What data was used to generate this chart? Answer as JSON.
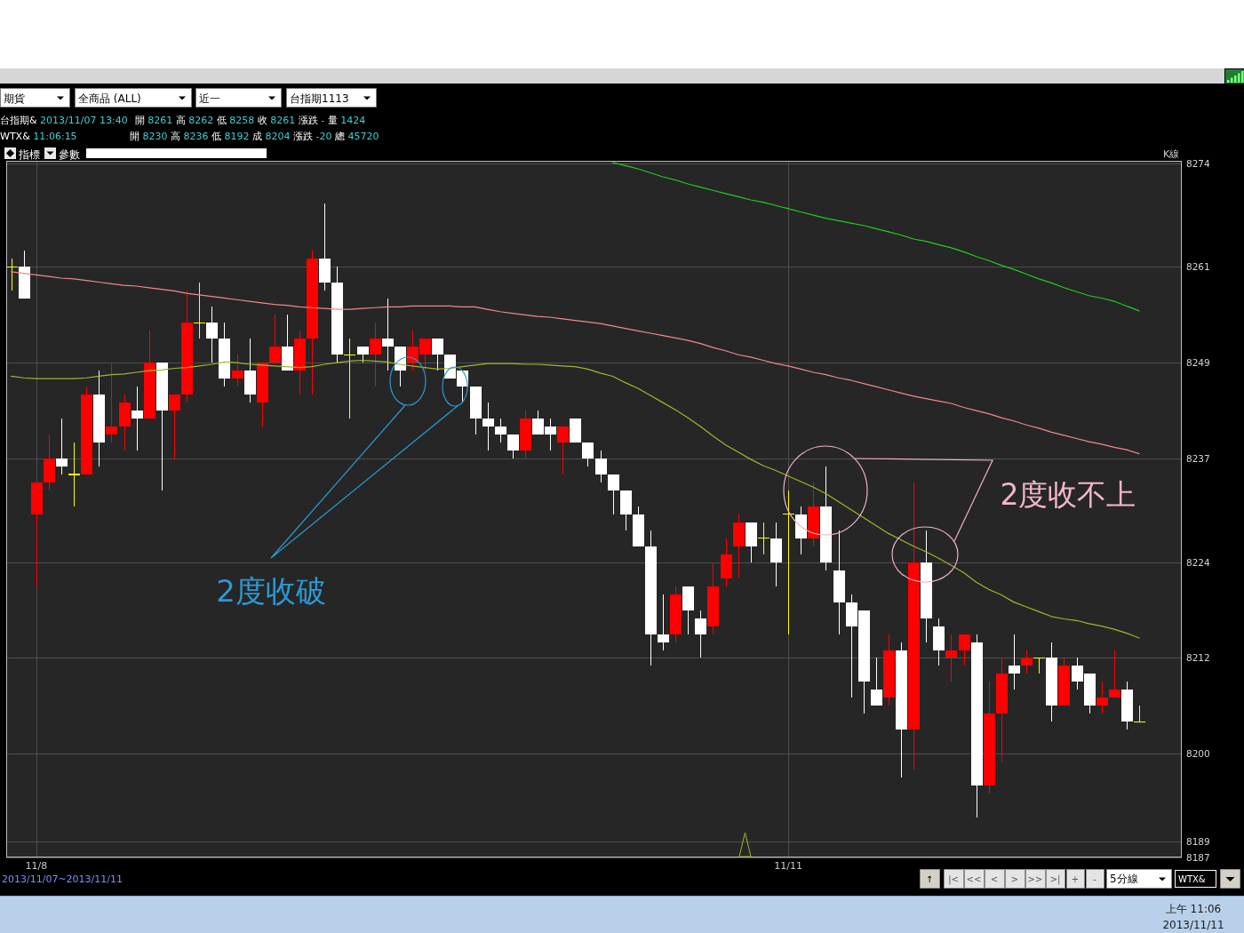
{
  "chart_data": {
    "type": "candlestick",
    "categories": [
      null,
      null,
      "11/8",
      null,
      null,
      null,
      null,
      null,
      null,
      null,
      null,
      null,
      null,
      null,
      null,
      null,
      null,
      null,
      null,
      null,
      null,
      null,
      null,
      null,
      null,
      null,
      null,
      null,
      null,
      null,
      null,
      null,
      null,
      null,
      null,
      null,
      null,
      null,
      null,
      null,
      null,
      null,
      null,
      null,
      null,
      null,
      null,
      null,
      null,
      null,
      null,
      null,
      null,
      null,
      null,
      null,
      null,
      null,
      null,
      null,
      null,
      null,
      "11/11",
      null,
      null,
      null,
      null,
      null,
      null,
      null,
      null,
      null,
      null,
      null,
      null,
      null,
      null,
      null,
      null,
      null,
      null,
      null,
      null,
      null,
      null,
      null,
      null,
      null,
      null,
      null,
      null
    ],
    "ohlc": [
      [
        8261,
        8262,
        8258,
        8261
      ],
      [
        8261,
        8263,
        8257,
        8257
      ],
      [
        8230,
        8234,
        8221,
        8234
      ],
      [
        8234,
        8240,
        8233,
        8237
      ],
      [
        8237,
        8242,
        8235,
        8236
      ],
      [
        8235,
        8239,
        8231,
        8235
      ],
      [
        8235,
        8246,
        8235,
        8245
      ],
      [
        8245,
        8248,
        8236,
        8239
      ],
      [
        8240,
        8249,
        8239,
        8241
      ],
      [
        8241,
        8245,
        8238,
        8244
      ],
      [
        8243,
        8246,
        8238,
        8242
      ],
      [
        8242,
        8253,
        8242,
        8249
      ],
      [
        8249,
        8249,
        8233,
        8243
      ],
      [
        8243,
        8245,
        8237,
        8245
      ],
      [
        8245,
        8258,
        8244,
        8254
      ],
      [
        8254,
        8259,
        8252,
        8254
      ],
      [
        8254,
        8256,
        8249,
        8252
      ],
      [
        8252,
        8254,
        8246,
        8247
      ],
      [
        8247,
        8250,
        8246,
        8248
      ],
      [
        8248,
        8252,
        8244,
        8245
      ],
      [
        8244,
        8249,
        8241,
        8249
      ],
      [
        8249,
        8255,
        8249,
        8251
      ],
      [
        8251,
        8255,
        8248,
        8248
      ],
      [
        8248,
        8253,
        8245,
        8252
      ],
      [
        8252,
        8263,
        8245,
        8262
      ],
      [
        8262,
        8269,
        8258,
        8259
      ],
      [
        8259,
        8261,
        8249,
        8250
      ],
      [
        8250,
        8252,
        8242,
        8250
      ],
      [
        8251,
        8251,
        8249,
        8250
      ],
      [
        8250,
        8254,
        8246,
        8252
      ],
      [
        8252,
        8257,
        8248,
        8251
      ],
      [
        8251,
        8251,
        8246,
        8248
      ],
      [
        8249,
        8253,
        8248,
        8251
      ],
      [
        8250,
        8252,
        8248,
        8252
      ],
      [
        8252,
        8252,
        8248,
        8250
      ],
      [
        8250,
        8250,
        8247,
        8247
      ],
      [
        8248,
        8248,
        8244,
        8246
      ],
      [
        8246,
        8246,
        8240,
        8242
      ],
      [
        8242,
        8244,
        8238,
        8241
      ],
      [
        8241,
        8242,
        8239,
        8240
      ],
      [
        8240,
        8240,
        8237,
        8238
      ],
      [
        8238,
        8243,
        8237,
        8242
      ],
      [
        8242,
        8243,
        8240,
        8240
      ],
      [
        8241,
        8242,
        8238,
        8240
      ],
      [
        8239,
        8241,
        8235,
        8241
      ],
      [
        8242,
        8242,
        8239,
        8239
      ],
      [
        8239,
        8239,
        8236,
        8237
      ],
      [
        8237,
        8238,
        8234,
        8235
      ],
      [
        8235,
        8235,
        8230,
        8233
      ],
      [
        8233,
        8233,
        8228,
        8230
      ],
      [
        8230,
        8231,
        8226,
        8226
      ],
      [
        8226,
        8228,
        8211,
        8215
      ],
      [
        8215,
        8220,
        8213,
        8214
      ],
      [
        8215,
        8221,
        8214,
        8220
      ],
      [
        8221,
        8221,
        8215,
        8218
      ],
      [
        8217,
        8218,
        8212,
        8215
      ],
      [
        8216,
        8224,
        8215,
        8221
      ],
      [
        8222,
        8227,
        8221,
        8225
      ],
      [
        8226,
        8230,
        8222,
        8229
      ],
      [
        8229,
        8229,
        8224,
        8226
      ],
      [
        8227,
        8229,
        8225,
        8227
      ],
      [
        8227,
        8229,
        8221,
        8224
      ],
      [
        8230,
        8233,
        8215,
        8230
      ],
      [
        8230,
        8231,
        8225,
        8227
      ],
      [
        8227,
        8234,
        8226,
        8231
      ],
      [
        8231,
        8236,
        8223,
        8224
      ],
      [
        8223,
        8228,
        8215,
        8219
      ],
      [
        8219,
        8220,
        8207,
        8216
      ],
      [
        8218,
        8218,
        8205,
        8209
      ],
      [
        8208,
        8212,
        8206,
        8206
      ],
      [
        8207,
        8215,
        8206,
        8213
      ],
      [
        8213,
        8214,
        8197,
        8203
      ],
      [
        8203,
        8234,
        8198,
        8224
      ],
      [
        8224,
        8228,
        8214,
        8217
      ],
      [
        8216,
        8217,
        8211,
        8213
      ],
      [
        8212,
        8215,
        8209,
        8213
      ],
      [
        8213,
        8215,
        8211,
        8215
      ],
      [
        8214,
        8215,
        8192,
        8196
      ],
      [
        8196,
        8209,
        8195,
        8205
      ],
      [
        8205,
        8212,
        8199,
        8210
      ],
      [
        8211,
        8215,
        8208,
        8210
      ],
      [
        8211,
        8213,
        8210,
        8212
      ],
      [
        8212,
        8212,
        8210,
        8212
      ],
      [
        8212,
        8214,
        8204,
        8206
      ],
      [
        8206,
        8212,
        8206,
        8211
      ],
      [
        8211,
        8212,
        8208,
        8209
      ],
      [
        8210,
        8210,
        8205,
        8206
      ],
      [
        8206,
        8209,
        8205,
        8207
      ],
      [
        8207,
        8213,
        8207,
        8208
      ],
      [
        8208,
        8209,
        8203,
        8204
      ],
      [
        8204,
        8206,
        8204,
        8204
      ]
    ],
    "colors": [
      "#ffff00",
      "#ffffff",
      "#ff0000",
      "#ff0000",
      "#ffffff",
      "#ffff00",
      "#ff0000",
      "#ffffff",
      "#ff0000",
      "#ff0000",
      "#ffffff",
      "#ff0000",
      "#ffffff",
      "#ff0000",
      "#ff0000",
      "#ffff00",
      "#ffffff",
      "#ffffff",
      "#ff0000",
      "#ffffff",
      "#ff0000",
      "#ff0000",
      "#ffffff",
      "#ff0000",
      "#ff0000",
      "#ffffff",
      "#ffffff",
      "#ffff00",
      "#ffffff",
      "#ff0000",
      "#ffffff",
      "#ffffff",
      "#ff0000",
      "#ff0000",
      "#ffffff",
      "#ffffff",
      "#ffffff",
      "#ffffff",
      "#ffffff",
      "#ffffff",
      "#ffffff",
      "#ff0000",
      "#ffffff",
      "#ffffff",
      "#ff0000",
      "#ffffff",
      "#ffffff",
      "#ffffff",
      "#ffffff",
      "#ffffff",
      "#ffffff",
      "#ffffff",
      "#ffffff",
      "#ff0000",
      "#ffffff",
      "#ffffff",
      "#ff0000",
      "#ff0000",
      "#ff0000",
      "#ffffff",
      "#ffff00",
      "#ffffff",
      "#ffff00",
      "#ffffff",
      "#ff0000",
      "#ffffff",
      "#ffffff",
      "#ffffff",
      "#ffffff",
      "#ffffff",
      "#ff0000",
      "#ffffff",
      "#ff0000",
      "#ffffff",
      "#ffffff",
      "#ff0000",
      "#ff0000",
      "#ffffff",
      "#ff0000",
      "#ff0000",
      "#ffffff",
      "#ff0000",
      "#ffff00",
      "#ffffff",
      "#ff0000",
      "#ffffff",
      "#ffffff",
      "#ff0000",
      "#ff0000",
      "#ffffff",
      "#ffff00"
    ],
    "series": [
      {
        "type": "line",
        "color": "#a3b62a",
        "values": [
          8247.3,
          8247.1,
          8247.0,
          8247.0,
          8247.0,
          8247.0,
          8247.1,
          8247.3,
          8247.5,
          8247.6,
          8247.8,
          8248.0,
          8248.1,
          8248.3,
          8248.4,
          8248.6,
          8248.8,
          8249.1,
          8249.0,
          8248.8,
          8248.7,
          8248.6,
          8248.5,
          8248.4,
          8248.5,
          8248.8,
          8249.0,
          8249.2,
          8249.3,
          8249.2,
          8249.1,
          8248.8,
          8248.6,
          8248.4,
          8248.2,
          8248.3,
          8248.5,
          8248.7,
          8248.9,
          8248.9,
          8248.9,
          8248.8,
          8248.8,
          8248.7,
          8248.6,
          8248.5,
          8248.2,
          8247.7,
          8247.3,
          8246.5,
          8245.8,
          8244.9,
          8244.0,
          8243.1,
          8242.1,
          8241.0,
          8239.8,
          8238.7,
          8237.8,
          8236.9,
          8236.1,
          8235.5,
          8234.8,
          8234.1,
          8233.4,
          8232.6,
          8231.6,
          8230.6,
          8229.6,
          8228.6,
          8227.6,
          8226.8,
          8226.0,
          8225.3,
          8224.5,
          8223.6,
          8222.7,
          8221.5,
          8220.6,
          8219.9,
          8219.0,
          8218.4,
          8217.8,
          8217.2,
          8216.9,
          8216.7,
          8216.3,
          8216.0,
          8215.6,
          8215.1,
          8214.5
        ]
      },
      {
        "type": "line",
        "color": "#ee8a8a",
        "values": [
          8260.4,
          8260.2,
          8260.0,
          8259.8,
          8259.6,
          8259.5,
          8259.3,
          8259.1,
          8258.9,
          8258.7,
          8258.6,
          8258.4,
          8258.2,
          8258.0,
          8257.7,
          8257.5,
          8257.3,
          8257.1,
          8256.9,
          8256.7,
          8256.5,
          8256.3,
          8256.2,
          8256.0,
          8255.9,
          8255.8,
          8255.7,
          8255.7,
          8255.8,
          8255.9,
          8256.0,
          8256.0,
          8256.1,
          8256.1,
          8256.1,
          8256.1,
          8256.0,
          8256.0,
          8255.7,
          8255.4,
          8255.2,
          8255.0,
          8254.8,
          8254.7,
          8254.5,
          8254.3,
          8254.1,
          8253.9,
          8253.6,
          8253.3,
          8253.0,
          8252.7,
          8252.4,
          8252.1,
          8251.8,
          8251.4,
          8250.9,
          8250.5,
          8250.0,
          8249.7,
          8249.3,
          8248.9,
          8248.6,
          8248.2,
          8247.8,
          8247.5,
          8247.1,
          8246.8,
          8246.4,
          8246.0,
          8245.6,
          8245.2,
          8244.8,
          8244.5,
          8244.2,
          8243.9,
          8243.4,
          8243.0,
          8242.6,
          8242.1,
          8241.7,
          8241.2,
          8240.8,
          8240.3,
          8239.9,
          8239.5,
          8239.1,
          8238.8,
          8238.4,
          8238.1,
          8237.6
        ]
      },
      {
        "type": "line",
        "color": "#22cc22",
        "values": [
          null,
          null,
          null,
          null,
          null,
          null,
          null,
          null,
          null,
          null,
          null,
          null,
          null,
          null,
          null,
          null,
          null,
          null,
          null,
          null,
          null,
          null,
          null,
          null,
          null,
          null,
          null,
          null,
          null,
          null,
          null,
          null,
          null,
          null,
          null,
          null,
          null,
          null,
          null,
          null,
          null,
          null,
          null,
          null,
          null,
          null,
          null,
          null,
          8274.1,
          8273.7,
          8273.3,
          8272.8,
          8272.3,
          8271.9,
          8271.4,
          8271.0,
          8270.6,
          8270.2,
          8269.8,
          8269.4,
          8269.1,
          8268.7,
          8268.3,
          8267.9,
          8267.5,
          8267.1,
          8266.8,
          8266.5,
          8266.2,
          8265.8,
          8265.4,
          8265.0,
          8264.5,
          8264.2,
          8263.8,
          8263.4,
          8262.9,
          8262.3,
          8261.8,
          8261.2,
          8260.7,
          8260.1,
          8259.5,
          8259.0,
          8258.4,
          8257.9,
          8257.4,
          8257.1,
          8256.7,
          8256.1,
          8255.5
        ]
      }
    ],
    "ylim": [
      8187,
      8274.3
    ],
    "yticks": [
      8274,
      8261,
      8249,
      8237,
      8224,
      8212,
      8200,
      8189,
      8187
    ],
    "grid": true,
    "annotations": [
      "期貨",
      "全商品 (ALL)",
      "近一",
      "台指期1113",
      "台指期& 2013/11/07 13:40",
      "開 8261 高 8262 低 8258 收 8261 漲跌 - 量 1424",
      "WTX& 11:06:15",
      "開 8230 高 8236 低 8192 成 8204 漲跌 -20 總 45720",
      "指標",
      "參數",
      "K線",
      "2度收破",
      "2度收不上",
      "2013/11/07~2013/11/11",
      "↑",
      "|<",
      "<<",
      "<",
      ">",
      ">>",
      ">|",
      "+",
      "-",
      "5分線",
      "WTX&",
      "上午 11:06",
      "2013/11/11"
    ]
  }
}
